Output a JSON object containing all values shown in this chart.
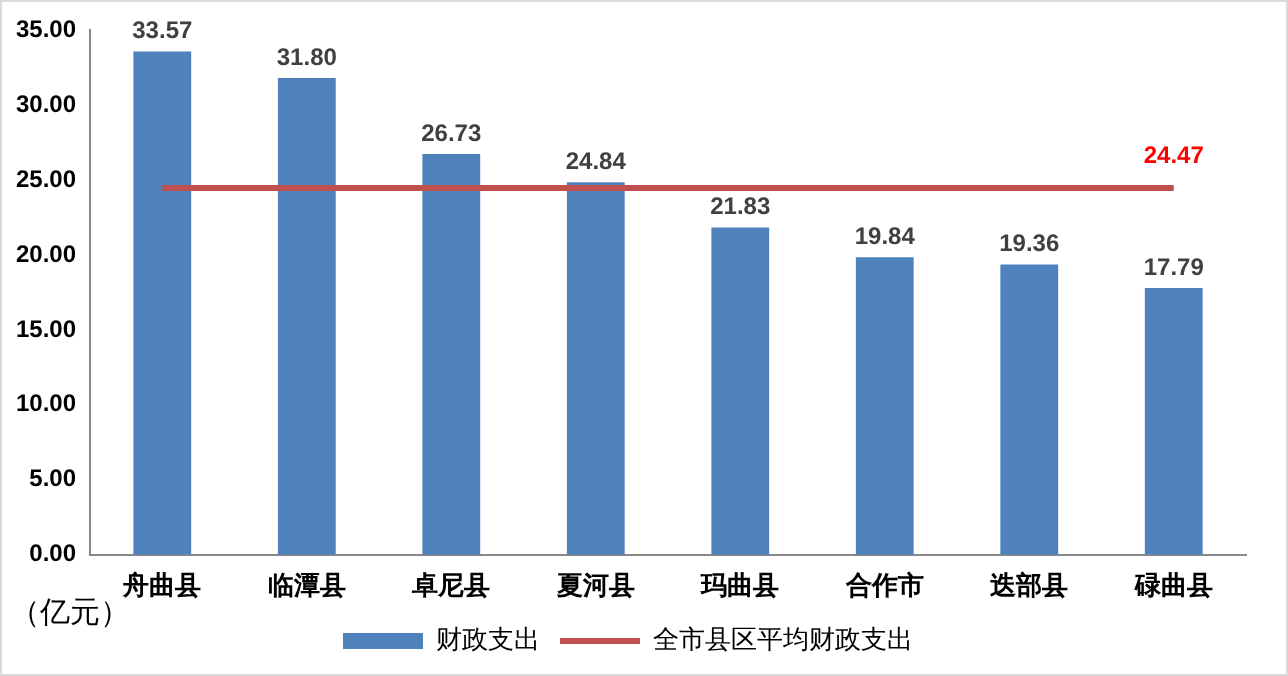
{
  "chart_data": {
    "type": "bar",
    "categories": [
      "舟曲县",
      "临潭县",
      "卓尼县",
      "夏河县",
      "玛曲县",
      "合作市",
      "迭部县",
      "碌曲县"
    ],
    "series": [
      {
        "name": "财政支出",
        "color": "#4f81bd",
        "values": [
          33.57,
          31.8,
          26.73,
          24.84,
          21.83,
          19.84,
          19.36,
          17.79
        ],
        "value_labels": [
          "33.57",
          "31.80",
          "26.73",
          "24.84",
          "21.83",
          "19.84",
          "19.36",
          "17.79"
        ]
      },
      {
        "name": "全市县区平均财政支出",
        "type": "line",
        "color": "#c0504d",
        "values": [
          24.47,
          24.47,
          24.47,
          24.47,
          24.47,
          24.47,
          24.47,
          24.47
        ],
        "value_labels": [
          null,
          null,
          null,
          null,
          null,
          null,
          null,
          "24.47"
        ]
      }
    ],
    "ylabel": "（亿元）",
    "ylim": [
      0,
      35
    ],
    "yticks": [
      {
        "value": 0,
        "label": "0.00"
      },
      {
        "value": 5,
        "label": "5.00"
      },
      {
        "value": 10,
        "label": "10.00"
      },
      {
        "value": 15,
        "label": "15.00"
      },
      {
        "value": 20,
        "label": "20.00"
      },
      {
        "value": 25,
        "label": "25.00"
      },
      {
        "value": 30,
        "label": "30.00"
      },
      {
        "value": 35,
        "label": "35.00"
      }
    ],
    "grid": false,
    "legend": "bottom",
    "marker": "none"
  }
}
